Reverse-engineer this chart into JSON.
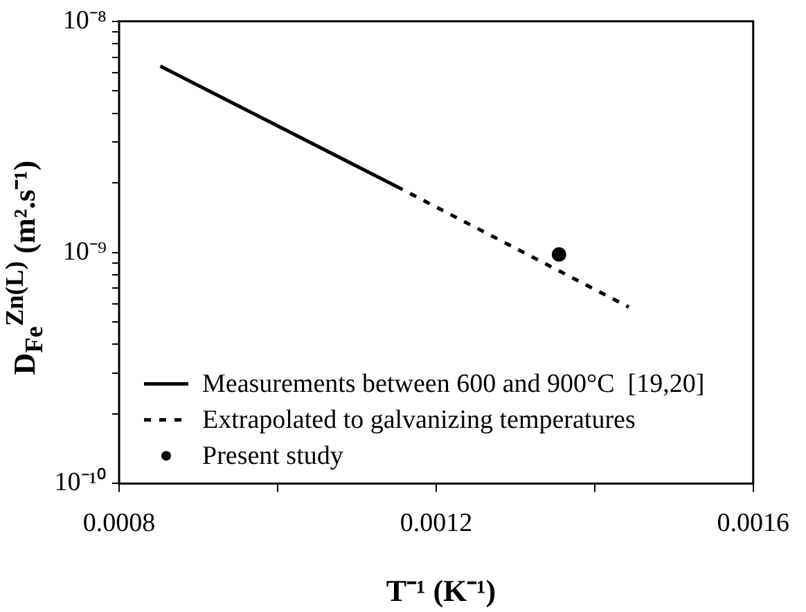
{
  "chart_data": {
    "type": "line",
    "xlabel": "T⁻¹ (K⁻¹)",
    "ylabel": "D$_{Fe}$$^{Zn(L)}$ (m².s⁻¹)",
    "xlim": [
      0.0008,
      0.0016
    ],
    "ylim": [
      1e-10,
      1e-08
    ],
    "log": "y",
    "xticks": [
      0.0008,
      {
        "value": 0.001,
        "label": null
      },
      0.0012,
      {
        "value": 0.0014,
        "label": null
      },
      0.0016
    ],
    "yticks": [
      {
        "value": 1e-10,
        "label": "10⁻¹⁰"
      },
      {
        "value": 2e-10,
        "label": null
      },
      {
        "value": 3e-10,
        "label": null
      },
      {
        "value": 4e-10,
        "label": null
      },
      {
        "value": 5e-10,
        "label": null
      },
      {
        "value": 6e-10,
        "label": null
      },
      {
        "value": 7e-10,
        "label": null
      },
      {
        "value": 8e-10,
        "label": null
      },
      {
        "value": 9e-10,
        "label": null
      },
      {
        "value": 1e-09,
        "label": "10⁻⁹"
      },
      {
        "value": 2e-09,
        "label": null
      },
      {
        "value": 3e-09,
        "label": null
      },
      {
        "value": 4e-09,
        "label": null
      },
      {
        "value": 5e-09,
        "label": null
      },
      {
        "value": 6e-09,
        "label": null
      },
      {
        "value": 7e-09,
        "label": null
      },
      {
        "value": 8e-09,
        "label": null
      },
      {
        "value": 9e-09,
        "label": null
      },
      {
        "value": 1e-08,
        "label": "10⁻⁸"
      }
    ],
    "grid": false,
    "legend": "bottom left",
    "series": [
      {
        "name": "Measurements between 600 and 900°C  [19,20]",
        "color": "#000000",
        "x": [
          0.000852,
          0.00115
        ],
        "values": [
          6.4e-09,
          1.93e-09
        ],
        "line_style": "solid",
        "marker": "none"
      },
      {
        "name": "Extrapolated to galvanizing temperatures",
        "color": "#000000",
        "x": [
          0.00115,
          0.001443
        ],
        "values": [
          1.93e-09,
          5.8e-10
        ],
        "line_style": "dashed",
        "marker": "none"
      },
      {
        "name": "Present study",
        "type": "scatter",
        "color": "#000000",
        "x": [
          0.001355
        ],
        "values": [
          9.8e-10
        ],
        "marker": "circle"
      }
    ]
  }
}
